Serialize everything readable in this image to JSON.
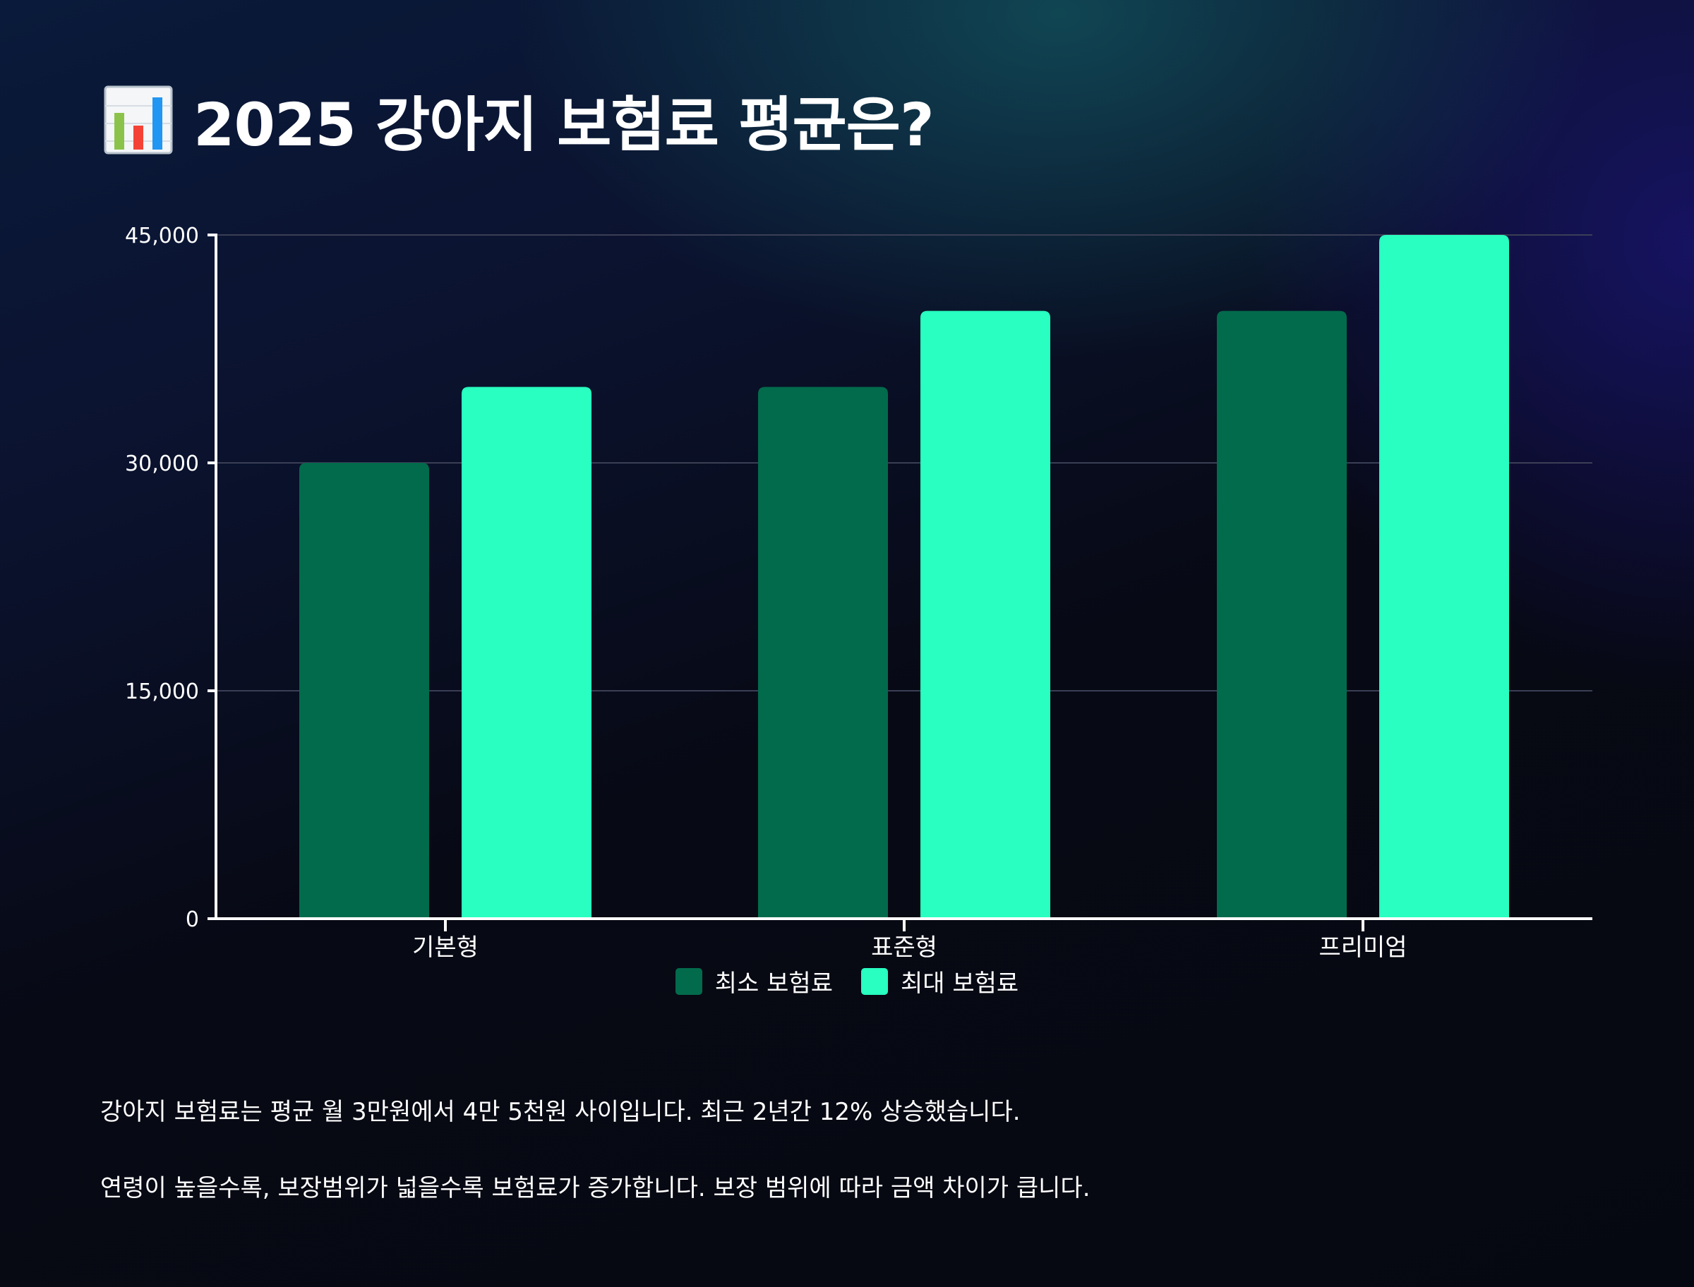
{
  "title": "2025 강아지 보험료 평균은?",
  "title_icon": "bar-chart-emoji-icon",
  "colors": {
    "min_series": "#026b4c",
    "max_series": "#28ffc0",
    "axis": "#ffffff",
    "grid": "#3b3f55"
  },
  "legend": {
    "min_label": "최소 보험료",
    "max_label": "최대 보험료"
  },
  "chart_data": {
    "type": "bar",
    "title": "2025 강아지 보험료 평균은?",
    "categories": [
      "기본형",
      "표준형",
      "프리미엄"
    ],
    "series": [
      {
        "name": "최소 보험료",
        "values": [
          30000,
          35000,
          40000
        ]
      },
      {
        "name": "최대 보험료",
        "values": [
          35000,
          40000,
          45000
        ]
      }
    ],
    "yticks": [
      0,
      15000,
      30000,
      45000
    ],
    "ytick_labels": [
      "0",
      "15,000",
      "30,000",
      "45,000"
    ],
    "ylim": [
      0,
      45000
    ],
    "xlabel": "",
    "ylabel": "",
    "grid": true,
    "legend_position": "bottom"
  },
  "description": {
    "line1": "강아지 보험료는 평균 월 3만원에서 4만 5천원 사이입니다. 최근 2년간 12% 상승했습니다.",
    "line2": "연령이 높을수록, 보장범위가 넓을수록 보험료가 증가합니다. 보장 범위에 따라 금액 차이가 큽니다."
  }
}
